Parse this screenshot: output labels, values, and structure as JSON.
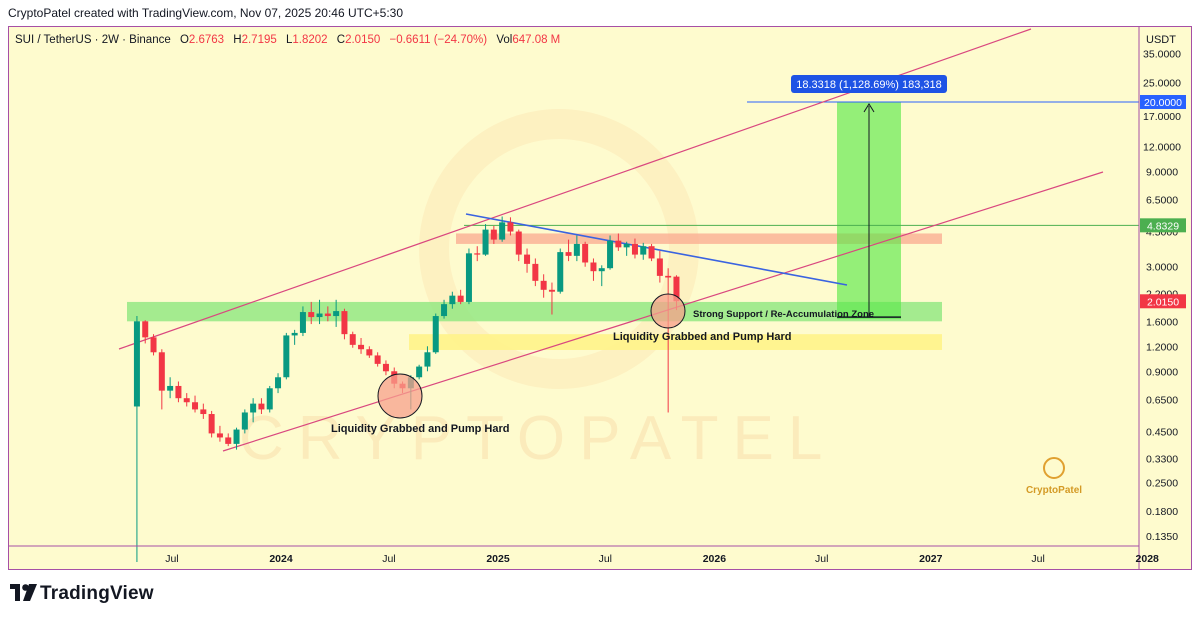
{
  "header": {
    "attribution": "CryptoPatel created with TradingView.com, Nov 07, 2025 20:46 UTC+5:30"
  },
  "legend": {
    "symbol": "SUI / TetherUS · 2W · Binance",
    "open_label": "O",
    "open": "2.6763",
    "high_label": "H",
    "high": "2.7195",
    "low_label": "L",
    "low": "1.8202",
    "close_label": "C",
    "close": "2.0150",
    "change": "−0.6611 (−24.70%)",
    "vol_label": "Vol",
    "vol": "647.08 M"
  },
  "price_axis": {
    "currency": "USDT",
    "ticks": [
      "35.0000",
      "25.0000",
      "17.0000",
      "12.0000",
      "9.0000",
      "6.5000",
      "4.5000",
      "3.0000",
      "2.2000",
      "1.6000",
      "1.2000",
      "0.9000",
      "0.6500",
      "0.4500",
      "0.3300",
      "0.2500",
      "0.1800",
      "0.1350"
    ],
    "badges": [
      {
        "label": "20.0000",
        "value": 20.0,
        "color": "#2962ff"
      },
      {
        "label": "4.8329",
        "value": 4.8329,
        "color": "#4caf50"
      },
      {
        "label": "2.0150",
        "value": 2.015,
        "color": "#f23645"
      }
    ]
  },
  "time_axis": {
    "ticks": [
      {
        "label": "Jul",
        "bold": false
      },
      {
        "label": "2024",
        "bold": true
      },
      {
        "label": "Jul",
        "bold": false
      },
      {
        "label": "2025",
        "bold": true
      },
      {
        "label": "Jul",
        "bold": false
      },
      {
        "label": "2026",
        "bold": true
      },
      {
        "label": "Jul",
        "bold": false
      },
      {
        "label": "2027",
        "bold": true
      },
      {
        "label": "Jul",
        "bold": false
      },
      {
        "label": "2028",
        "bold": true
      }
    ]
  },
  "annotations": {
    "target_box": "18.3318 (1,128.69%) 183,318",
    "support_zone": "Strong Support / Re-Accumulation Zone",
    "liquidity_left": "Liquidity Grabbed and Pump Hard",
    "liquidity_right": "Liquidity Grabbed and Pump Hard",
    "watermark": "CRYPTOPATEL",
    "brand_mark": "CryptoPatel"
  },
  "footer": {
    "brand": "TradingView"
  },
  "chart_data": {
    "type": "candlestick",
    "symbol": "SUI / TetherUS",
    "interval": "2W",
    "exchange": "Binance",
    "y_scale": "log",
    "ylim": [
      0.12,
      45
    ],
    "x_range": [
      "2023-05-01",
      "2028-01-01"
    ],
    "candles": [
      {
        "t": "2023-05-03",
        "o": 0.6,
        "h": 1.7,
        "l": 0.1,
        "c": 1.6
      },
      {
        "t": "2023-05-17",
        "o": 1.6,
        "h": 1.62,
        "l": 1.24,
        "c": 1.33
      },
      {
        "t": "2023-05-31",
        "o": 1.33,
        "h": 1.38,
        "l": 1.08,
        "c": 1.12
      },
      {
        "t": "2023-06-14",
        "o": 1.12,
        "h": 1.16,
        "l": 0.58,
        "c": 0.72
      },
      {
        "t": "2023-06-28",
        "o": 0.72,
        "h": 0.84,
        "l": 0.66,
        "c": 0.76
      },
      {
        "t": "2023-07-12",
        "o": 0.76,
        "h": 0.8,
        "l": 0.63,
        "c": 0.66
      },
      {
        "t": "2023-07-26",
        "o": 0.66,
        "h": 0.7,
        "l": 0.6,
        "c": 0.63
      },
      {
        "t": "2023-08-09",
        "o": 0.63,
        "h": 0.68,
        "l": 0.56,
        "c": 0.58
      },
      {
        "t": "2023-08-23",
        "o": 0.58,
        "h": 0.62,
        "l": 0.52,
        "c": 0.55
      },
      {
        "t": "2023-09-06",
        "o": 0.55,
        "h": 0.57,
        "l": 0.42,
        "c": 0.44
      },
      {
        "t": "2023-09-20",
        "o": 0.44,
        "h": 0.48,
        "l": 0.4,
        "c": 0.42
      },
      {
        "t": "2023-10-04",
        "o": 0.42,
        "h": 0.44,
        "l": 0.38,
        "c": 0.39
      },
      {
        "t": "2023-10-18",
        "o": 0.39,
        "h": 0.47,
        "l": 0.365,
        "c": 0.46
      },
      {
        "t": "2023-11-01",
        "o": 0.46,
        "h": 0.58,
        "l": 0.44,
        "c": 0.56
      },
      {
        "t": "2023-11-15",
        "o": 0.56,
        "h": 0.66,
        "l": 0.5,
        "c": 0.62
      },
      {
        "t": "2023-11-29",
        "o": 0.62,
        "h": 0.66,
        "l": 0.55,
        "c": 0.58
      },
      {
        "t": "2023-12-13",
        "o": 0.58,
        "h": 0.76,
        "l": 0.56,
        "c": 0.74
      },
      {
        "t": "2023-12-27",
        "o": 0.74,
        "h": 0.88,
        "l": 0.7,
        "c": 0.84
      },
      {
        "t": "2024-01-10",
        "o": 0.84,
        "h": 1.4,
        "l": 0.82,
        "c": 1.36
      },
      {
        "t": "2024-01-24",
        "o": 1.36,
        "h": 1.45,
        "l": 1.22,
        "c": 1.4
      },
      {
        "t": "2024-02-07",
        "o": 1.4,
        "h": 1.9,
        "l": 1.35,
        "c": 1.78
      },
      {
        "t": "2024-02-21",
        "o": 1.78,
        "h": 2.0,
        "l": 1.55,
        "c": 1.68
      },
      {
        "t": "2024-03-06",
        "o": 1.68,
        "h": 2.05,
        "l": 1.55,
        "c": 1.75
      },
      {
        "t": "2024-03-20",
        "o": 1.75,
        "h": 1.9,
        "l": 1.6,
        "c": 1.7
      },
      {
        "t": "2024-04-03",
        "o": 1.7,
        "h": 2.05,
        "l": 1.5,
        "c": 1.8
      },
      {
        "t": "2024-04-17",
        "o": 1.8,
        "h": 1.85,
        "l": 1.3,
        "c": 1.38
      },
      {
        "t": "2024-05-01",
        "o": 1.38,
        "h": 1.42,
        "l": 1.18,
        "c": 1.22
      },
      {
        "t": "2024-05-15",
        "o": 1.22,
        "h": 1.32,
        "l": 1.1,
        "c": 1.16
      },
      {
        "t": "2024-05-29",
        "o": 1.16,
        "h": 1.2,
        "l": 1.05,
        "c": 1.08
      },
      {
        "t": "2024-06-12",
        "o": 1.08,
        "h": 1.12,
        "l": 0.95,
        "c": 0.98
      },
      {
        "t": "2024-06-26",
        "o": 0.98,
        "h": 1.02,
        "l": 0.86,
        "c": 0.9
      },
      {
        "t": "2024-07-10",
        "o": 0.9,
        "h": 0.94,
        "l": 0.74,
        "c": 0.78
      },
      {
        "t": "2024-07-24",
        "o": 0.78,
        "h": 0.8,
        "l": 0.7,
        "c": 0.74
      },
      {
        "t": "2024-08-07",
        "o": 0.74,
        "h": 0.86,
        "l": 0.58,
        "c": 0.84
      },
      {
        "t": "2024-08-21",
        "o": 0.84,
        "h": 0.97,
        "l": 0.82,
        "c": 0.95
      },
      {
        "t": "2024-09-04",
        "o": 0.95,
        "h": 1.2,
        "l": 0.9,
        "c": 1.12
      },
      {
        "t": "2024-09-18",
        "o": 1.12,
        "h": 1.75,
        "l": 1.1,
        "c": 1.7
      },
      {
        "t": "2024-10-02",
        "o": 1.7,
        "h": 2.05,
        "l": 1.65,
        "c": 1.95
      },
      {
        "t": "2024-10-16",
        "o": 1.95,
        "h": 2.25,
        "l": 1.85,
        "c": 2.15
      },
      {
        "t": "2024-10-30",
        "o": 2.15,
        "h": 2.3,
        "l": 1.95,
        "c": 2.0
      },
      {
        "t": "2024-11-13",
        "o": 2.0,
        "h": 3.7,
        "l": 1.95,
        "c": 3.5
      },
      {
        "t": "2024-11-27",
        "o": 3.5,
        "h": 3.8,
        "l": 3.2,
        "c": 3.45
      },
      {
        "t": "2024-12-11",
        "o": 3.45,
        "h": 4.9,
        "l": 3.4,
        "c": 4.6
      },
      {
        "t": "2024-12-25",
        "o": 4.6,
        "h": 4.8,
        "l": 3.9,
        "c": 4.1
      },
      {
        "t": "2025-01-08",
        "o": 4.1,
        "h": 5.35,
        "l": 4.0,
        "c": 5.0
      },
      {
        "t": "2025-01-22",
        "o": 5.0,
        "h": 5.3,
        "l": 4.3,
        "c": 4.5
      },
      {
        "t": "2025-02-05",
        "o": 4.5,
        "h": 4.6,
        "l": 3.2,
        "c": 3.45
      },
      {
        "t": "2025-02-19",
        "o": 3.45,
        "h": 3.7,
        "l": 2.8,
        "c": 3.1
      },
      {
        "t": "2025-03-05",
        "o": 3.1,
        "h": 3.3,
        "l": 2.4,
        "c": 2.55
      },
      {
        "t": "2025-03-19",
        "o": 2.55,
        "h": 2.75,
        "l": 2.1,
        "c": 2.3
      },
      {
        "t": "2025-04-02",
        "o": 2.3,
        "h": 2.5,
        "l": 1.73,
        "c": 2.25
      },
      {
        "t": "2025-04-16",
        "o": 2.25,
        "h": 3.7,
        "l": 2.2,
        "c": 3.55
      },
      {
        "t": "2025-04-30",
        "o": 3.55,
        "h": 4.1,
        "l": 3.2,
        "c": 3.4
      },
      {
        "t": "2025-05-14",
        "o": 3.4,
        "h": 4.3,
        "l": 3.2,
        "c": 3.9
      },
      {
        "t": "2025-05-28",
        "o": 3.9,
        "h": 4.0,
        "l": 3.0,
        "c": 3.15
      },
      {
        "t": "2025-06-11",
        "o": 3.15,
        "h": 3.3,
        "l": 2.55,
        "c": 2.85
      },
      {
        "t": "2025-06-25",
        "o": 2.85,
        "h": 3.05,
        "l": 2.4,
        "c": 2.95
      },
      {
        "t": "2025-07-09",
        "o": 2.95,
        "h": 4.3,
        "l": 2.9,
        "c": 4.05
      },
      {
        "t": "2025-07-23",
        "o": 4.05,
        "h": 4.4,
        "l": 3.6,
        "c": 3.75
      },
      {
        "t": "2025-08-06",
        "o": 3.75,
        "h": 4.0,
        "l": 3.4,
        "c": 3.9
      },
      {
        "t": "2025-08-20",
        "o": 3.9,
        "h": 4.15,
        "l": 3.3,
        "c": 3.45
      },
      {
        "t": "2025-09-03",
        "o": 3.45,
        "h": 3.95,
        "l": 3.25,
        "c": 3.8
      },
      {
        "t": "2025-09-17",
        "o": 3.8,
        "h": 3.9,
        "l": 3.2,
        "c": 3.3
      },
      {
        "t": "2025-10-01",
        "o": 3.3,
        "h": 3.6,
        "l": 2.5,
        "c": 2.7
      },
      {
        "t": "2025-10-15",
        "o": 2.7,
        "h": 2.95,
        "l": 0.56,
        "c": 2.65
      },
      {
        "t": "2025-10-29",
        "o": 2.6763,
        "h": 2.7195,
        "l": 1.8202,
        "c": 2.015
      }
    ],
    "levels": [
      {
        "name": "20.0000",
        "value": 20.0
      },
      {
        "name": "4.8329",
        "value": 4.8329
      }
    ],
    "zones": [
      {
        "label": "Strong Support / Re-Accumulation Zone",
        "from": 1.6,
        "to": 2.0
      },
      {
        "label": "",
        "from": 1.15,
        "to": 1.38
      },
      {
        "label": "",
        "from": 3.9,
        "to": 4.4
      }
    ],
    "projection": {
      "label": "18.3318 (1,128.69%) 183,318",
      "from": 1.64,
      "to": 20.0
    }
  }
}
